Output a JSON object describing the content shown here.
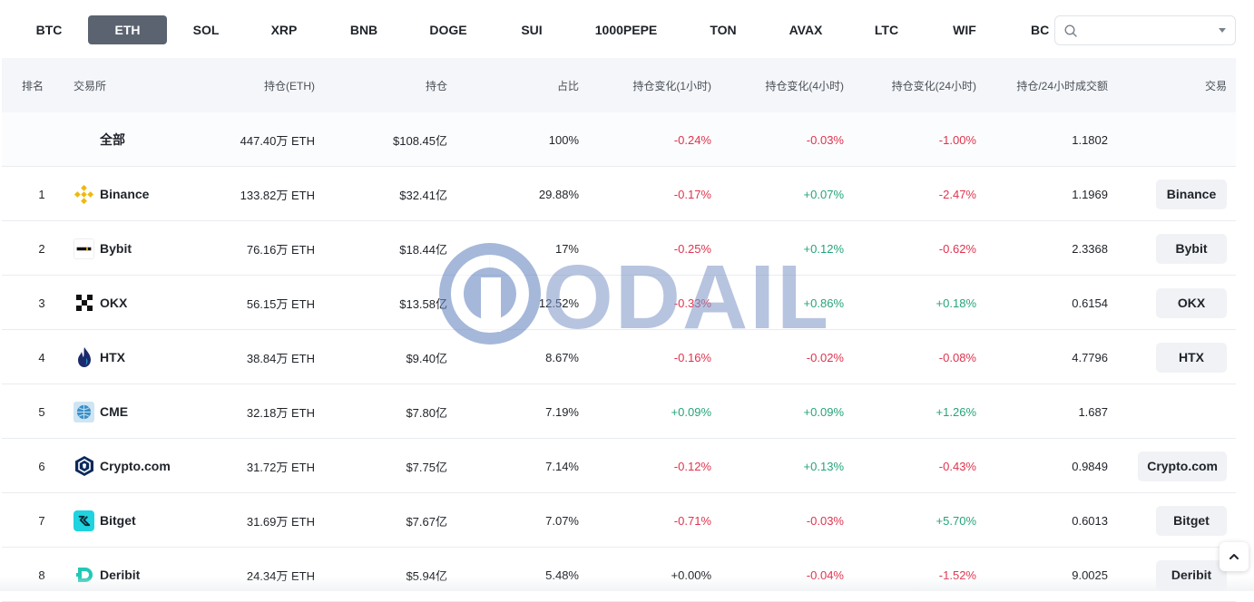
{
  "tabs": [
    {
      "label": "BTC",
      "active": false
    },
    {
      "label": "ETH",
      "active": true
    },
    {
      "label": "SOL",
      "active": false
    },
    {
      "label": "XRP",
      "active": false
    },
    {
      "label": "BNB",
      "active": false
    },
    {
      "label": "DOGE",
      "active": false
    },
    {
      "label": "SUI",
      "active": false
    },
    {
      "label": "1000PEPE",
      "active": false
    },
    {
      "label": "TON",
      "active": false
    },
    {
      "label": "AVAX",
      "active": false
    },
    {
      "label": "LTC",
      "active": false
    },
    {
      "label": "WIF",
      "active": false
    },
    {
      "label": "BC",
      "active": false
    }
  ],
  "search": {
    "icon": "search-icon",
    "value": ""
  },
  "header": {
    "rank": "排名",
    "exchange": "交易所",
    "holding": "持仓(ETH)",
    "usd": "持仓",
    "pct": "占比",
    "chg1h": "持仓变化(1小时)",
    "chg4h": "持仓变化(4小时)",
    "chg24h": "持仓变化(24小时)",
    "ratio": "持仓/24小时成交额",
    "trade": "交易"
  },
  "total": {
    "label": "全部",
    "holding": "447.40万 ETH",
    "usd": "$108.45亿",
    "pct": "100%",
    "chg1h": "-0.24%",
    "chg4h": "-0.03%",
    "chg24h": "-1.00%",
    "ratio": "1.1802"
  },
  "rows": [
    {
      "rank": "1",
      "name": "Binance",
      "logo": "binance-logo",
      "holding": "133.82万 ETH",
      "usd": "$32.41亿",
      "pct": "29.88%",
      "chg1h": "-0.17%",
      "chg4h": "+0.07%",
      "chg24h": "-2.47%",
      "ratio": "1.1969",
      "trade": "Binance"
    },
    {
      "rank": "2",
      "name": "Bybit",
      "logo": "bybit-logo",
      "holding": "76.16万 ETH",
      "usd": "$18.44亿",
      "pct": "17%",
      "chg1h": "-0.25%",
      "chg4h": "+0.12%",
      "chg24h": "-0.62%",
      "ratio": "2.3368",
      "trade": "Bybit"
    },
    {
      "rank": "3",
      "name": "OKX",
      "logo": "okx-logo",
      "holding": "56.15万 ETH",
      "usd": "$13.58亿",
      "pct": "12.52%",
      "chg1h": "-0.33%",
      "chg4h": "+0.86%",
      "chg24h": "+0.18%",
      "ratio": "0.6154",
      "trade": "OKX"
    },
    {
      "rank": "4",
      "name": "HTX",
      "logo": "htx-logo",
      "holding": "38.84万 ETH",
      "usd": "$9.40亿",
      "pct": "8.67%",
      "chg1h": "-0.16%",
      "chg4h": "-0.02%",
      "chg24h": "-0.08%",
      "ratio": "4.7796",
      "trade": "HTX"
    },
    {
      "rank": "5",
      "name": "CME",
      "logo": "cme-logo",
      "holding": "32.18万 ETH",
      "usd": "$7.80亿",
      "pct": "7.19%",
      "chg1h": "+0.09%",
      "chg4h": "+0.09%",
      "chg24h": "+1.26%",
      "ratio": "1.687",
      "trade": ""
    },
    {
      "rank": "6",
      "name": "Crypto.com",
      "logo": "crypto-com-logo",
      "holding": "31.72万 ETH",
      "usd": "$7.75亿",
      "pct": "7.14%",
      "chg1h": "-0.12%",
      "chg4h": "+0.13%",
      "chg24h": "-0.43%",
      "ratio": "0.9849",
      "trade": "Crypto.com"
    },
    {
      "rank": "7",
      "name": "Bitget",
      "logo": "bitget-logo",
      "holding": "31.69万 ETH",
      "usd": "$7.67亿",
      "pct": "7.07%",
      "chg1h": "-0.71%",
      "chg4h": "-0.03%",
      "chg24h": "+5.70%",
      "ratio": "0.6013",
      "trade": "Bitget"
    },
    {
      "rank": "8",
      "name": "Deribit",
      "logo": "deribit-logo",
      "holding": "24.34万 ETH",
      "usd": "$5.94亿",
      "pct": "5.48%",
      "chg1h": "+0.00%",
      "chg4h": "-0.04%",
      "chg24h": "-1.52%",
      "ratio": "9.0025",
      "trade": "Deribit"
    }
  ],
  "watermark": {
    "text": "ODAILY"
  },
  "colors": {
    "negative": "#e0334e",
    "positive": "#26a47a",
    "active_tab": "#5b6370",
    "header_bg": "#f4f6f9"
  },
  "scroll_top": {
    "icon": "chevron-up-icon"
  }
}
